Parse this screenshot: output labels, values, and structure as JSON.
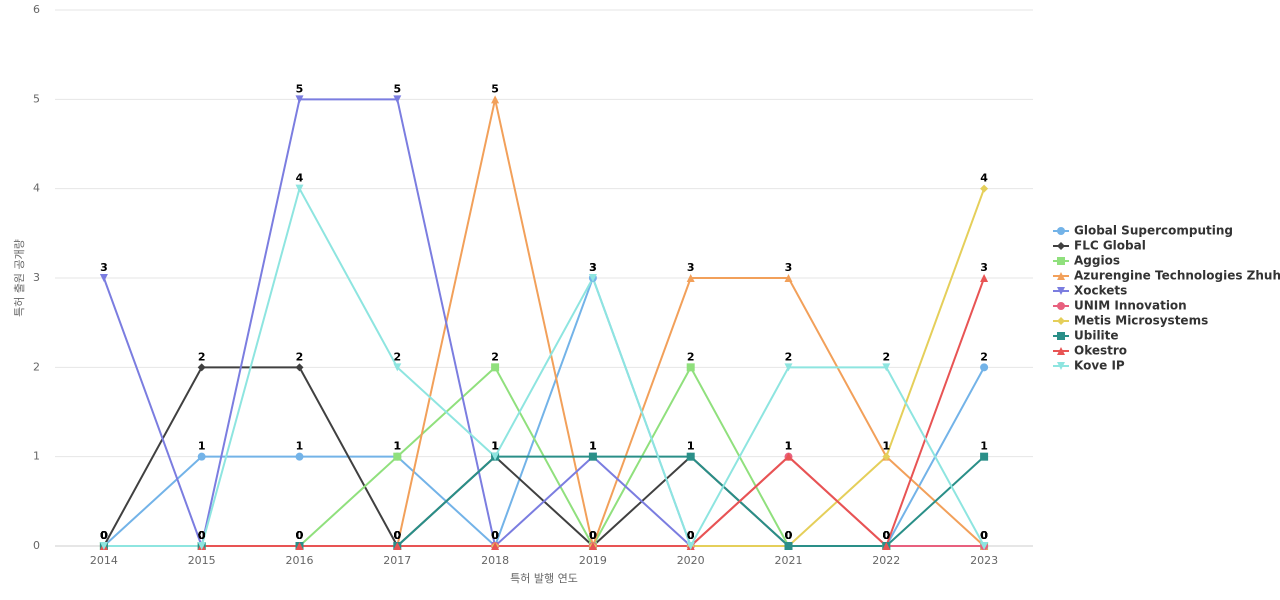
{
  "chart_data": {
    "type": "line",
    "x_label": "특허 발행 연도",
    "y_label": "특허 출원 공개량",
    "categories": [
      "2014",
      "2015",
      "2016",
      "2017",
      "2018",
      "2019",
      "2020",
      "2021",
      "2022",
      "2023"
    ],
    "ylim": [
      0,
      6
    ],
    "yticks": [
      0,
      1,
      2,
      3,
      4,
      5,
      6
    ],
    "grid": true,
    "series": [
      {
        "name": "Global Supercomputing",
        "color": "#73b3e8",
        "marker": "circle",
        "values": [
          0,
          1,
          1,
          1,
          0,
          3,
          0,
          0,
          0,
          2
        ]
      },
      {
        "name": "FLC Global",
        "color": "#404040",
        "marker": "diamond",
        "values": [
          0,
          2,
          2,
          0,
          1,
          0,
          1,
          0,
          0,
          0
        ]
      },
      {
        "name": "Aggios",
        "color": "#90e07d",
        "marker": "square",
        "values": [
          0,
          0,
          0,
          1,
          2,
          0,
          2,
          0,
          0,
          0
        ]
      },
      {
        "name": "Azurengine Technologies Zhuhai",
        "color": "#f2a05a",
        "marker": "triangle",
        "values": [
          0,
          0,
          0,
          0,
          5,
          0,
          3,
          3,
          1,
          0
        ]
      },
      {
        "name": "Xockets",
        "color": "#7b7de0",
        "marker": "triangle-down",
        "values": [
          3,
          0,
          5,
          5,
          0,
          1,
          0,
          0,
          0,
          0
        ]
      },
      {
        "name": "UNIM Innovation",
        "color": "#e8607e",
        "marker": "circle",
        "values": [
          0,
          0,
          0,
          0,
          0,
          0,
          0,
          1,
          0,
          0
        ]
      },
      {
        "name": "Metis Microsystems",
        "color": "#e5cf5a",
        "marker": "diamond",
        "values": [
          0,
          0,
          0,
          0,
          0,
          0,
          0,
          0,
          1,
          4
        ]
      },
      {
        "name": "Ubilite",
        "color": "#2a8f88",
        "marker": "square",
        "values": [
          0,
          0,
          0,
          0,
          1,
          1,
          1,
          0,
          0,
          1
        ]
      },
      {
        "name": "Okestro",
        "color": "#e85454",
        "marker": "triangle",
        "values": [
          0,
          0,
          0,
          0,
          0,
          0,
          0,
          1,
          0,
          3
        ]
      },
      {
        "name": "Kove IP",
        "color": "#8ee5e0",
        "marker": "triangle-down",
        "values": [
          0,
          0,
          4,
          2,
          1,
          3,
          0,
          2,
          2,
          0
        ]
      }
    ]
  }
}
